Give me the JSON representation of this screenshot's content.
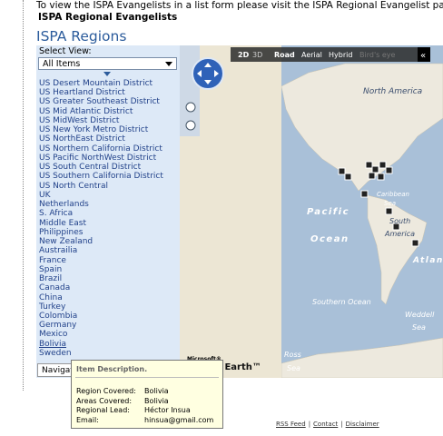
{
  "header": {
    "intro": "To view the ISPA Evangelists in a list form please visit the ISPA Regional Evangelist page",
    "subtitle": "ISPA Regional Evangelists",
    "title": "ISPA Regions"
  },
  "sidebar": {
    "select_label": "Select View:",
    "select_value": "All Items",
    "regions": [
      "US Desert Mountain District",
      "US Heartland District",
      "US Greater Southeast District",
      "US Mid Atlantic District",
      "US MidWest District",
      "US New York Metro District",
      "US NorthEast District",
      "US Northern California District",
      "US Pacific NorthWest District",
      "US South Central District",
      "US Southern California District",
      "US North Central",
      "UK",
      "Netherlands",
      "S. Africa",
      "Middle East",
      "Philippines",
      "New Zealand",
      "Austrailia",
      "France",
      "Spain",
      "Brazil",
      "Canada",
      "China",
      "Turkey",
      "Colombia",
      "Germany",
      "Mexico",
      "Bolivia",
      "Sweden"
    ],
    "nav": "Navigation"
  },
  "map": {
    "view_modes": [
      "2D",
      "3D"
    ],
    "styles": [
      "Road",
      "Aerial",
      "Hybrid",
      "Bird's eye"
    ],
    "collapse": "«",
    "labels": [
      "North America",
      "Caribbean",
      "Sea",
      "South",
      "America",
      "Pacific",
      "Ocean",
      "Atlantic",
      "Southern Ocean",
      "Weddell",
      "Sea",
      "Ross",
      "Sea"
    ],
    "logo_small": "Microsoft®",
    "logo": "Virtual Earth™"
  },
  "tooltip": {
    "title": "Item Description.",
    "rows": [
      {
        "label": "Region Covered:",
        "value": "Bolivia"
      },
      {
        "label": "Areas Covered:",
        "value": "Bolivia"
      },
      {
        "label": "Regional Lead:",
        "value": "Héctor Insua"
      },
      {
        "label": "Email:",
        "value": "hinsua@gmail.com"
      }
    ]
  },
  "footer": {
    "links": [
      "RSS Feed",
      "Contact",
      "Disclaimer"
    ],
    "separator": "|"
  }
}
